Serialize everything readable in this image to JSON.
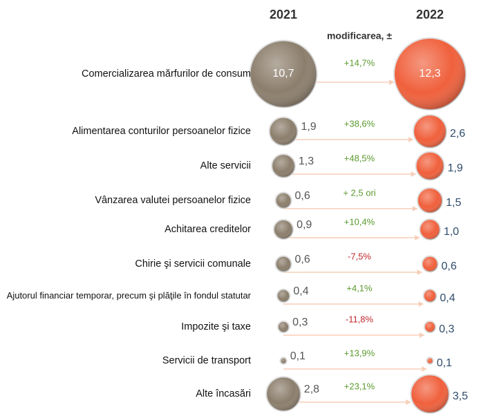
{
  "chart_data": {
    "type": "bubble",
    "categories": [
      "Comercializarea mărfurilor de consum",
      "Alimentarea conturilor persoanelor fizice",
      "Alte servicii",
      "Vânzarea valutei persoanelor fizice",
      "Achitarea creditelor",
      "Chirie şi servicii comunale",
      "Ajutorul financiar temporar, precum şi plăţile în fondul statutar",
      "Impozite şi taxe",
      "Servicii de transport",
      "Alte încasări"
    ],
    "series": [
      {
        "name": "2021",
        "color": "#8c7e6c",
        "label_color": "#555555",
        "values": [
          10.7,
          1.9,
          1.3,
          0.6,
          0.9,
          0.6,
          0.4,
          0.3,
          0.1,
          2.8
        ],
        "value_labels": [
          "10,7",
          "1,9",
          "1,3",
          "0,6",
          "0,9",
          "0,6",
          "0,4",
          "0,3",
          "0,1",
          "2,8"
        ]
      },
      {
        "name": "2022",
        "color": "#f0603c",
        "label_color": "#2e4a6b",
        "values": [
          12.3,
          2.6,
          1.9,
          1.5,
          1.0,
          0.6,
          0.4,
          0.3,
          0.1,
          3.5
        ],
        "value_labels": [
          "12,3",
          "2,6",
          "1,9",
          "1,5",
          "1,0",
          "0,6",
          "0,4",
          "0,3",
          "0,1",
          "3,5"
        ]
      }
    ],
    "change_title": "modificarea, ±",
    "change_labels": [
      "+14,7%",
      "+38,6%",
      "+48,5%",
      "+ 2,5 ori",
      "+10,4%",
      "-7,5%",
      "+4,1%",
      "-11,8%",
      "+13,9%",
      "+23,1%"
    ]
  }
}
